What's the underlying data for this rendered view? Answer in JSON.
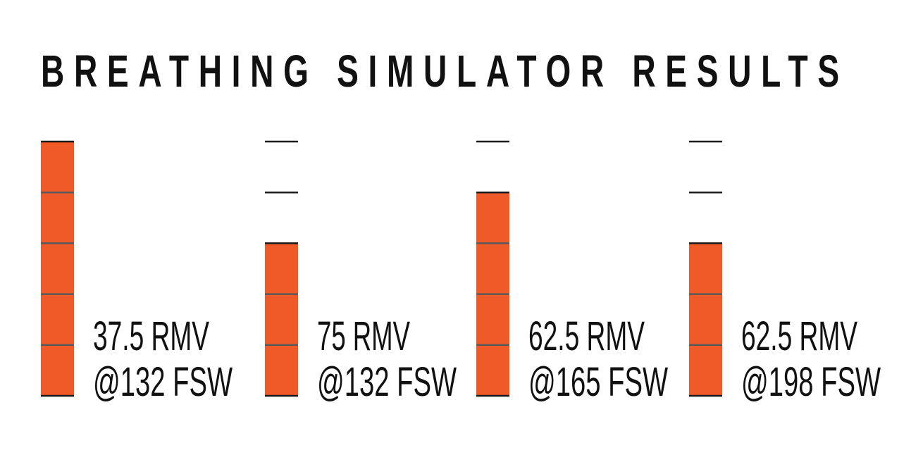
{
  "chart_data": {
    "type": "bar",
    "title": "BREATHING SIMULATOR RESULTS",
    "ylim": [
      0,
      5
    ],
    "segments": 5,
    "colors": {
      "bar": "#f05a28",
      "tick": "#1a1a1a",
      "divider": "#5a5a5a"
    },
    "bars": [
      {
        "value": 5,
        "line1": "37.5 RMV",
        "line2": "@132 FSW"
      },
      {
        "value": 3,
        "line1": "75 RMV",
        "line2": "@132 FSW"
      },
      {
        "value": 4,
        "line1": "62.5 RMV",
        "line2": "@165 FSW"
      },
      {
        "value": 3,
        "line1": "62.5 RMV",
        "line2": "@198 FSW"
      }
    ]
  }
}
